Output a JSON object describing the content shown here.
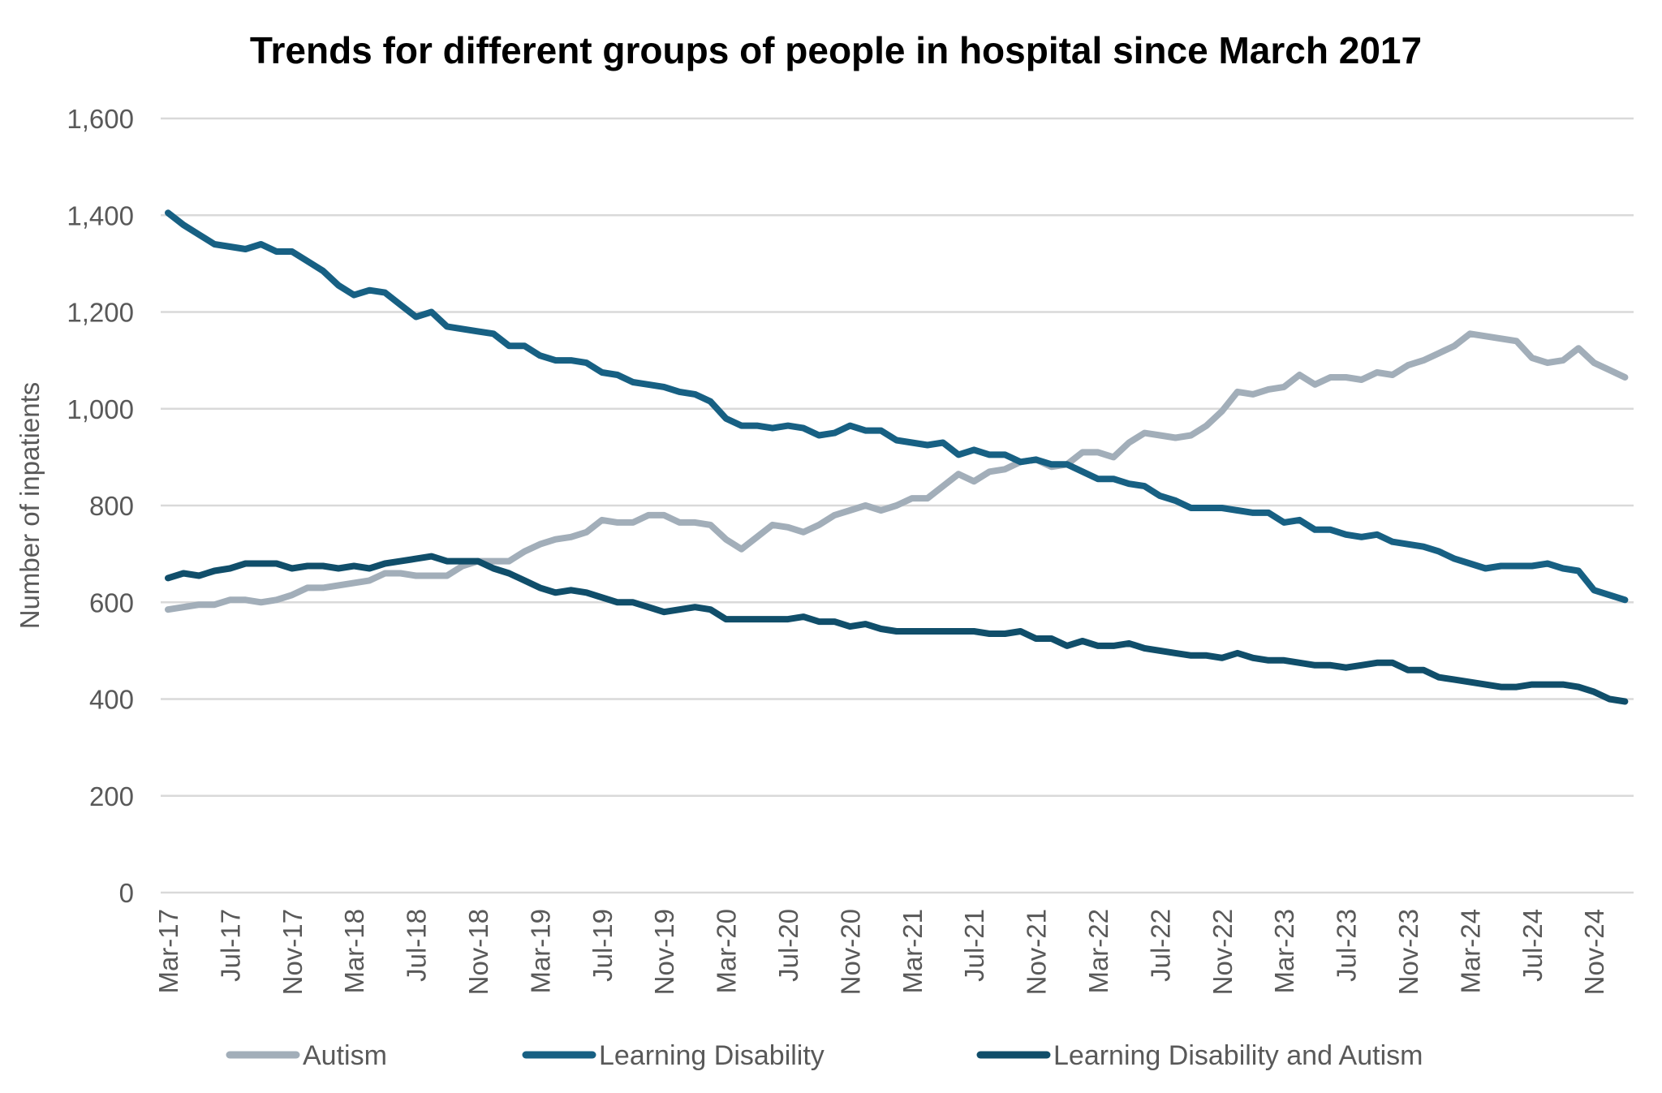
{
  "chart_data": {
    "type": "line",
    "title": "Trends for different groups of people in hospital since March 2017",
    "xlabel": "",
    "ylabel": "Number of inpatients",
    "ylim": [
      0,
      1600
    ],
    "yticks": [
      0,
      200,
      400,
      600,
      800,
      1000,
      1200,
      1400,
      1600
    ],
    "ytick_labels": [
      "0",
      "200",
      "400",
      "600",
      "800",
      "1,000",
      "1,200",
      "1,400",
      "1,600"
    ],
    "x_start": "Mar-17",
    "x_end": "Jan-25",
    "x_frequency": "monthly",
    "xtick_labels": [
      "Mar-17",
      "Jul-17",
      "Nov-17",
      "Mar-18",
      "Jul-18",
      "Nov-18",
      "Mar-19",
      "Jul-19",
      "Nov-19",
      "Mar-20",
      "Jul-20",
      "Nov-20",
      "Mar-21",
      "Jul-21",
      "Nov-21",
      "Mar-22",
      "Jul-22",
      "Nov-22",
      "Mar-23",
      "Jul-23",
      "Nov-23",
      "Mar-24",
      "Jul-24",
      "Nov-24"
    ],
    "grid": true,
    "legend_position": "bottom",
    "series": [
      {
        "name": "Autism",
        "color": "#a2aeb9",
        "values": [
          585,
          590,
          595,
          595,
          605,
          605,
          600,
          605,
          615,
          630,
          630,
          635,
          640,
          645,
          660,
          660,
          655,
          655,
          655,
          675,
          685,
          685,
          685,
          705,
          720,
          730,
          735,
          745,
          770,
          765,
          765,
          780,
          780,
          765,
          765,
          760,
          730,
          710,
          735,
          760,
          755,
          745,
          760,
          780,
          790,
          800,
          790,
          800,
          815,
          815,
          840,
          865,
          850,
          870,
          875,
          890,
          895,
          880,
          885,
          910,
          910,
          900,
          930,
          950,
          945,
          940,
          945,
          965,
          995,
          1035,
          1030,
          1040,
          1045,
          1070,
          1050,
          1065,
          1065,
          1060,
          1075,
          1070,
          1090,
          1100,
          1115,
          1130,
          1155,
          1150,
          1145,
          1140,
          1105,
          1095,
          1100,
          1125,
          1095,
          1080,
          1065
        ]
      },
      {
        "name": "Learning Disability",
        "color": "#176083",
        "values": [
          1405,
          1380,
          1360,
          1340,
          1335,
          1330,
          1340,
          1325,
          1325,
          1305,
          1285,
          1255,
          1235,
          1245,
          1240,
          1215,
          1190,
          1200,
          1170,
          1165,
          1160,
          1155,
          1130,
          1130,
          1110,
          1100,
          1100,
          1095,
          1075,
          1070,
          1055,
          1050,
          1045,
          1035,
          1030,
          1015,
          980,
          965,
          965,
          960,
          965,
          960,
          945,
          950,
          965,
          955,
          955,
          935,
          930,
          925,
          930,
          905,
          915,
          905,
          905,
          890,
          895,
          885,
          885,
          870,
          855,
          855,
          845,
          840,
          820,
          810,
          795,
          795,
          795,
          790,
          785,
          785,
          765,
          770,
          750,
          750,
          740,
          735,
          740,
          725,
          720,
          715,
          705,
          690,
          680,
          670,
          675,
          675,
          675,
          680,
          670,
          665,
          625,
          615,
          605
        ]
      },
      {
        "name": "Learning Disability and Autism",
        "color": "#104e6a",
        "values": [
          650,
          660,
          655,
          665,
          670,
          680,
          680,
          680,
          670,
          675,
          675,
          670,
          675,
          670,
          680,
          685,
          690,
          695,
          685,
          685,
          685,
          670,
          660,
          645,
          630,
          620,
          625,
          620,
          610,
          600,
          600,
          590,
          580,
          585,
          590,
          585,
          565,
          565,
          565,
          565,
          565,
          570,
          560,
          560,
          550,
          555,
          545,
          540,
          540,
          540,
          540,
          540,
          540,
          535,
          535,
          540,
          525,
          525,
          510,
          520,
          510,
          510,
          515,
          505,
          500,
          495,
          490,
          490,
          485,
          495,
          485,
          480,
          480,
          475,
          470,
          470,
          465,
          470,
          475,
          475,
          460,
          460,
          445,
          440,
          435,
          430,
          425,
          425,
          430,
          430,
          430,
          425,
          415,
          400,
          395
        ]
      }
    ]
  }
}
